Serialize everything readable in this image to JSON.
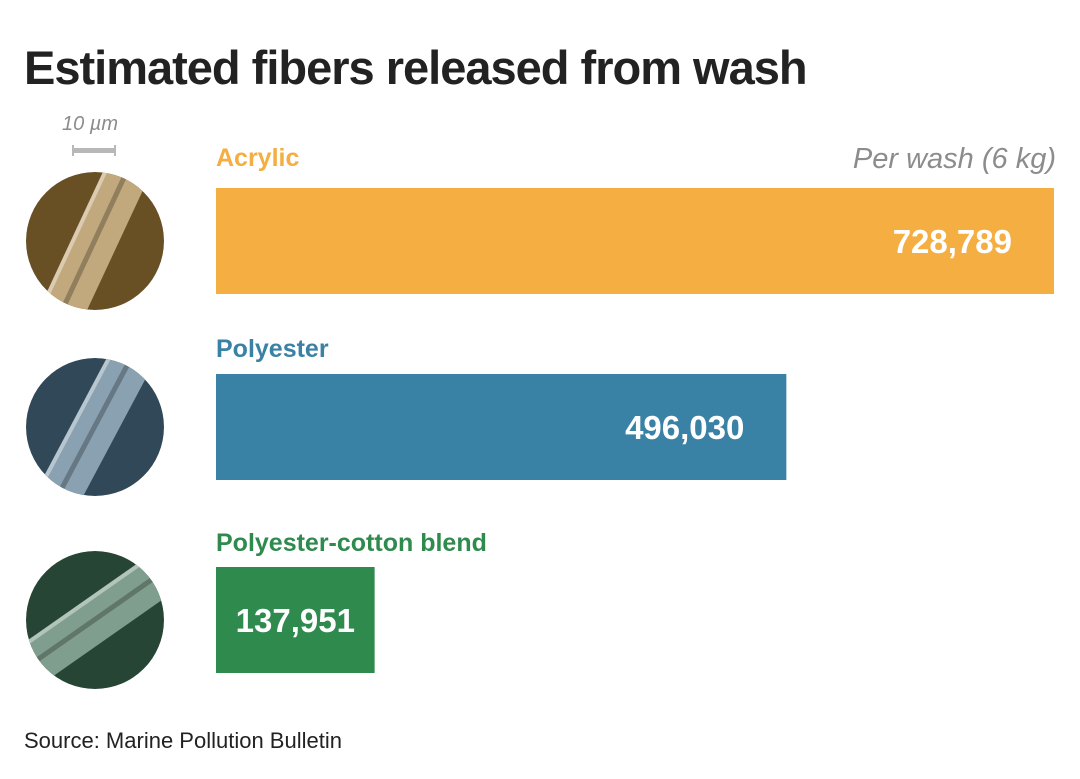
{
  "chart_data": {
    "type": "bar",
    "orientation": "horizontal",
    "title": "Estimated fibers released from wash",
    "subtitle": "Per wash (6 kg)",
    "scale_label": "10 µm",
    "categories": [
      "Acrylic",
      "Polyester",
      "Polyester-cotton blend"
    ],
    "values": [
      728789,
      496030,
      137951
    ],
    "value_labels": [
      "728,789",
      "496,030",
      "137,951"
    ],
    "colors": [
      "#f5ae42",
      "#3a82a5",
      "#2f8a4e"
    ],
    "fiber_image_tones": [
      "#a07a38",
      "#4a6f88",
      "#3c6b50"
    ],
    "xlim": [
      0,
      728789
    ],
    "grid": false,
    "legend": "none",
    "source": "Source: Marine Pollution Bulletin"
  }
}
